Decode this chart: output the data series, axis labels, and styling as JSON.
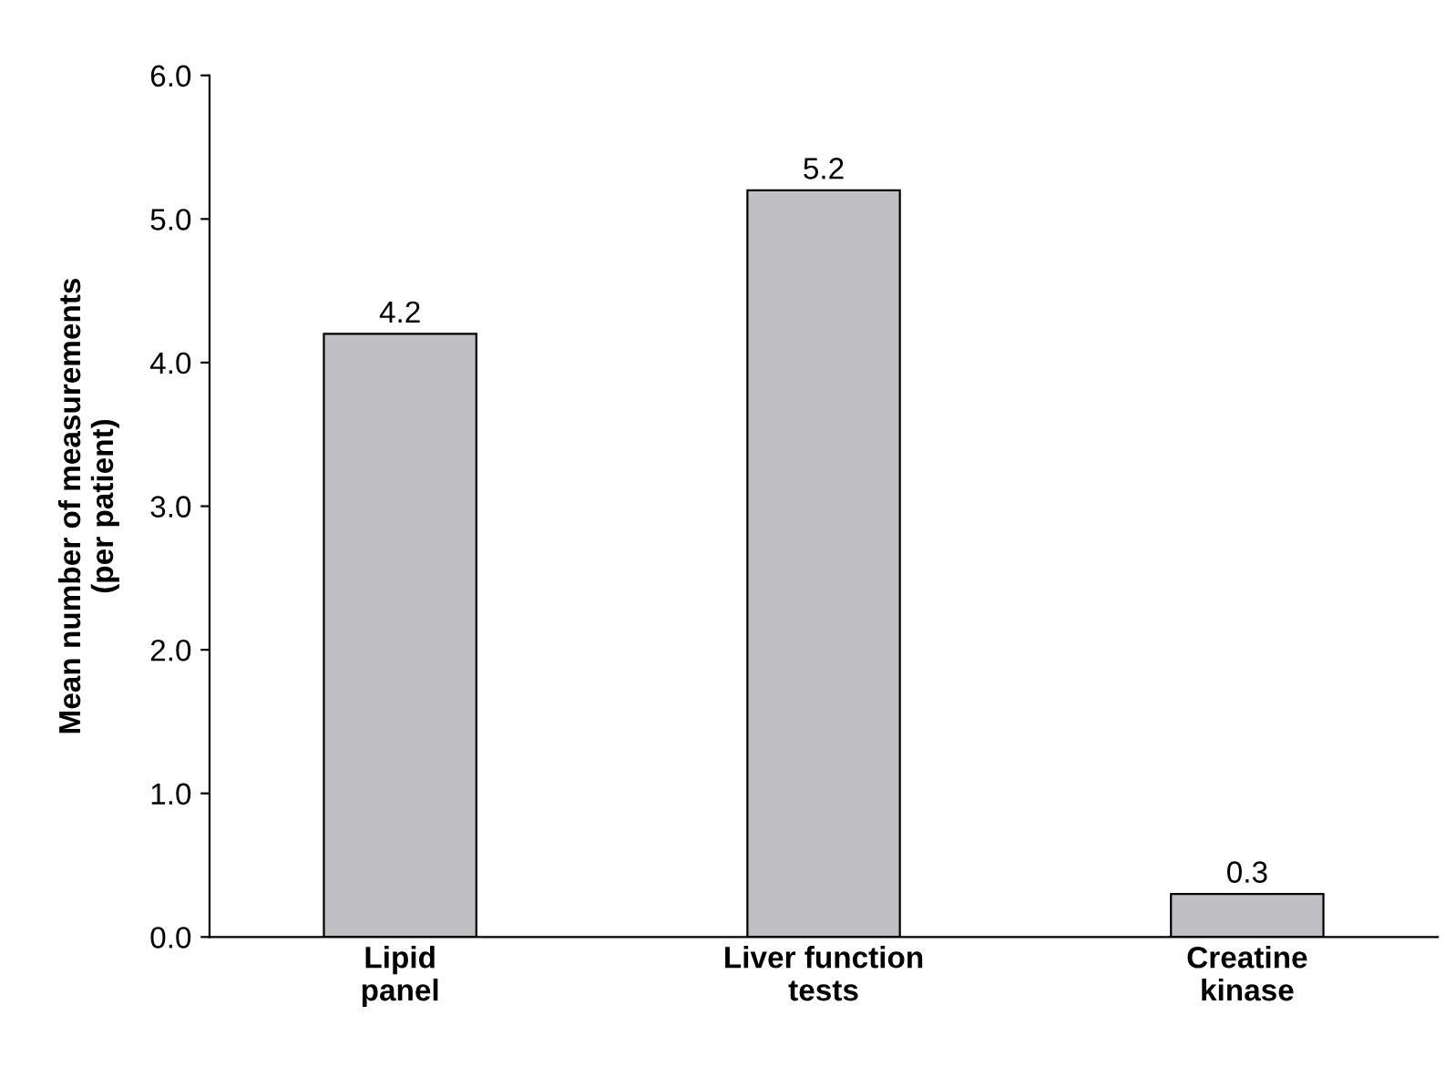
{
  "chart_data": {
    "type": "bar",
    "ylabel": "Mean number of measurements\n(per patient)",
    "categories": [
      "Lipid\npanel",
      "Liver function\ntests",
      "Creatine\nkinase"
    ],
    "values": [
      4.2,
      5.2,
      0.3
    ],
    "color": "#c0c0c4",
    "data_labels": true,
    "ylim": [
      0,
      6
    ],
    "yticks": [
      {
        "value": 0,
        "label": "0.0"
      },
      {
        "value": 1,
        "label": "1.0"
      },
      {
        "value": 2,
        "label": "2.0"
      },
      {
        "value": 3,
        "label": "3.0"
      },
      {
        "value": 4,
        "label": "4.0"
      },
      {
        "value": 5,
        "label": "5.0"
      },
      {
        "value": 6,
        "label": "6.0"
      }
    ],
    "grid": false,
    "legend": false
  }
}
